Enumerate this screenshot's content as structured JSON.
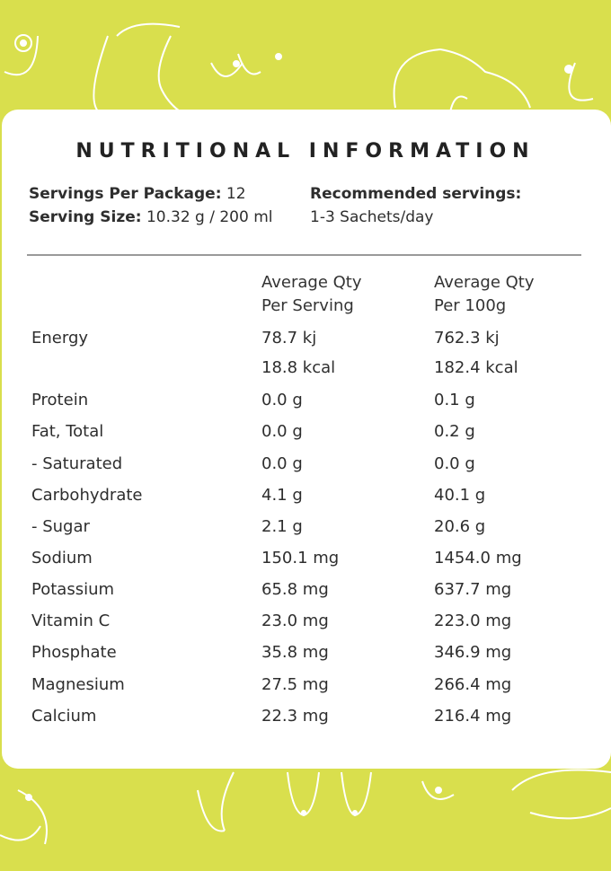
{
  "title": "NUTRITIONAL INFORMATION",
  "servings_per_package": {
    "label": "Servings Per Package:",
    "value": "12"
  },
  "serving_size": {
    "label": "Serving Size:",
    "value": "10.32 g / 200 ml"
  },
  "recommended": {
    "label": "Recommended servings:",
    "value": "1-3 Sachets/day"
  },
  "columns": {
    "per_serving_1": "Average Qty",
    "per_serving_2": "Per Serving",
    "per_100g_1": "Average Qty",
    "per_100g_2": "Per 100g"
  },
  "rows": [
    {
      "name": "Energy",
      "serving": "78.7 kj",
      "per100": "762.3 kj"
    },
    {
      "name": "",
      "serving": "18.8 kcal",
      "per100": "182.4 kcal"
    },
    {
      "name": "Protein",
      "serving": "0.0 g",
      "per100": "0.1 g"
    },
    {
      "name": "Fat, Total",
      "serving": "0.0 g",
      "per100": "0.2 g"
    },
    {
      "name": "- Saturated",
      "serving": "0.0 g",
      "per100": "0.0 g"
    },
    {
      "name": "Carbohydrate",
      "serving": "4.1 g",
      "per100": "40.1 g"
    },
    {
      "name": "- Sugar",
      "serving": "2.1 g",
      "per100": "20.6 g"
    },
    {
      "name": "Sodium",
      "serving": "150.1 mg",
      "per100": "1454.0 mg"
    },
    {
      "name": "Potassium",
      "serving": "65.8 mg",
      "per100": "637.7 mg"
    },
    {
      "name": "Vitamin C",
      "serving": "23.0 mg",
      "per100": "223.0 mg"
    },
    {
      "name": "Phosphate",
      "serving": "35.8 mg",
      "per100": "346.9 mg"
    },
    {
      "name": "Magnesium",
      "serving": "27.5 mg",
      "per100": "266.4 mg"
    },
    {
      "name": "Calcium",
      "serving": "22.3 mg",
      "per100": "216.4 mg"
    }
  ]
}
